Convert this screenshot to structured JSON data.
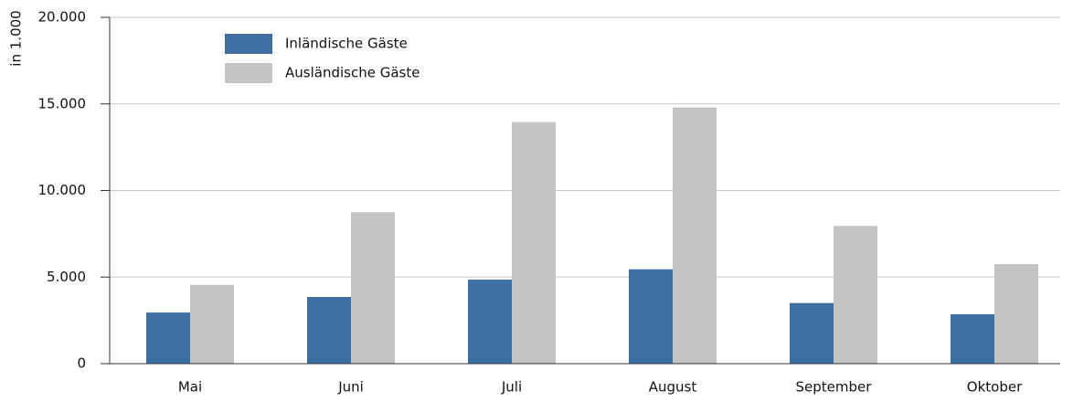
{
  "chart_data": {
    "type": "bar",
    "y_label": "in 1.000",
    "categories": [
      "Mai",
      "Juni",
      "Juli",
      "August",
      "September",
      "Oktober"
    ],
    "series": [
      {
        "name": "Inländische Gäste",
        "color": "#3d6fa3",
        "values": [
          2950,
          3850,
          4850,
          5450,
          3500,
          2850
        ]
      },
      {
        "name": "Ausländische Gäste",
        "color": "#c4c4c4",
        "values": [
          4550,
          8750,
          13950,
          14800,
          7950,
          5750
        ]
      }
    ],
    "ylim": [
      0,
      20000
    ],
    "yticks": [
      0,
      {
        "value": 5000,
        "label": "5.000"
      },
      {
        "value": 10000,
        "label": "10.000"
      },
      {
        "value": 15000,
        "label": "15.000"
      },
      {
        "value": 20000,
        "label": "20.000"
      }
    ],
    "grid": true,
    "legend": "top-left"
  }
}
